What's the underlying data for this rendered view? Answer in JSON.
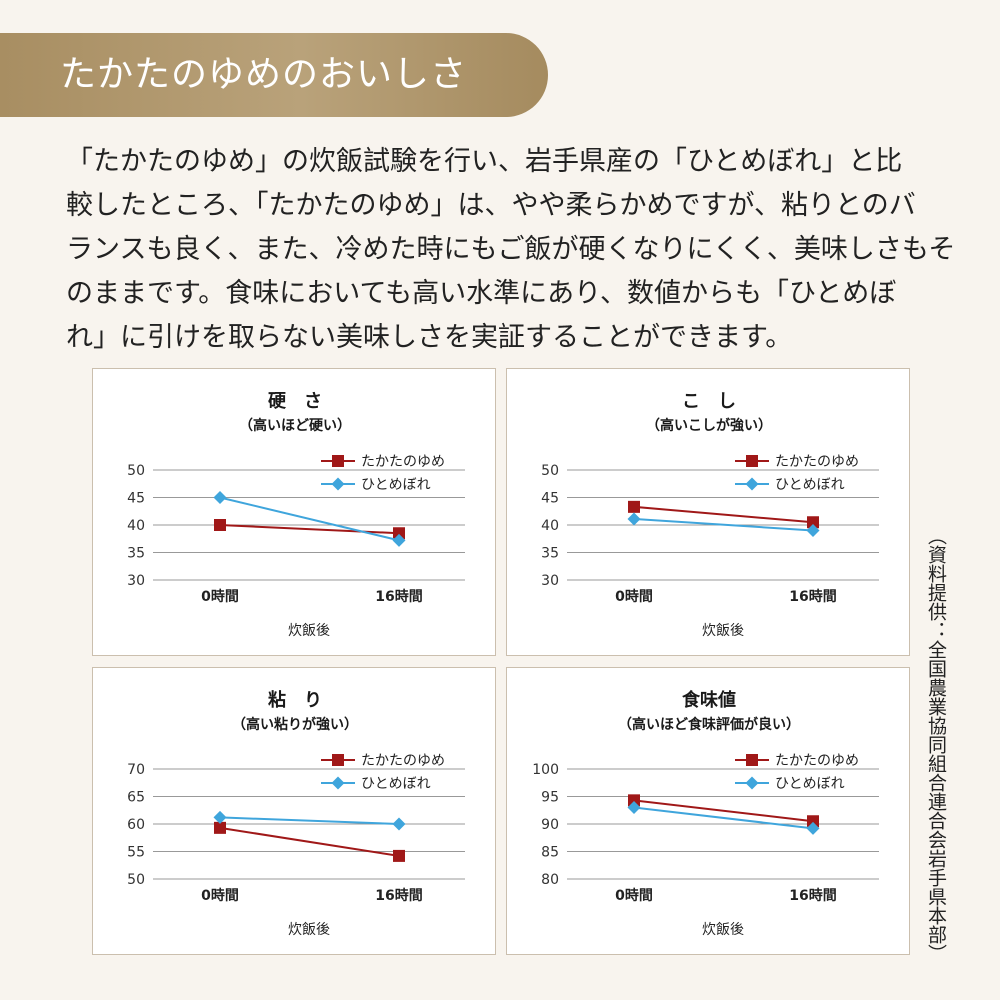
{
  "header": {
    "title": "たかたのゆめのおいしさ"
  },
  "intro": {
    "lines": [
      "「たかたのゆめ」の炊飯試験を行い、岩手県産の「ひとめぼれ」と比",
      "較したところ、「たかたのゆめ」は、やや柔らかめですが、粘りとのバ",
      "ランスも良く、また、冷めた時にもご飯が硬くなりにくく、美味しさもそ",
      "のままです。食味においても高い水準にあり、数値からも「ひとめぼ",
      "れ」に引けを取らない美味しさを実証することができます。"
    ]
  },
  "credit": "（資料提供：全国農業協同組合連合会岩手県本部）",
  "colors": {
    "takata": "#a01818",
    "hitome": "#3fa5dc",
    "grid": "#999999"
  },
  "chart_data": [
    {
      "type": "line",
      "title": "硬　さ",
      "subtitle": "（高いほど硬い）",
      "categories": [
        "0時間",
        "16時間"
      ],
      "xlabel": "炊飯後",
      "ylim": [
        30,
        50
      ],
      "yticks": [
        30,
        35,
        40,
        45,
        50
      ],
      "legend_position": "top-right",
      "series": [
        {
          "name": "たかたのゆめ",
          "marker": "square",
          "values": [
            40,
            38.5
          ]
        },
        {
          "name": "ひとめぼれ",
          "marker": "diamond",
          "values": [
            45,
            37.2
          ]
        }
      ]
    },
    {
      "type": "line",
      "title": "こ　し",
      "subtitle": "（高いこしが強い）",
      "categories": [
        "0時間",
        "16時間"
      ],
      "xlabel": "炊飯後",
      "ylim": [
        30,
        50
      ],
      "yticks": [
        30,
        35,
        40,
        45,
        50
      ],
      "legend_position": "top-right",
      "series": [
        {
          "name": "たかたのゆめ",
          "marker": "square",
          "values": [
            43.3,
            40.5
          ]
        },
        {
          "name": "ひとめぼれ",
          "marker": "diamond",
          "values": [
            41.1,
            39
          ]
        }
      ]
    },
    {
      "type": "line",
      "title": "粘　り",
      "subtitle": "（高い粘りが強い）",
      "categories": [
        "0時間",
        "16時間"
      ],
      "xlabel": "炊飯後",
      "ylim": [
        50,
        70
      ],
      "yticks": [
        50,
        55,
        60,
        65,
        70
      ],
      "legend_position": "top-right",
      "series": [
        {
          "name": "たかたのゆめ",
          "marker": "square",
          "values": [
            59.3,
            54.2
          ]
        },
        {
          "name": "ひとめぼれ",
          "marker": "diamond",
          "values": [
            61.2,
            60
          ]
        }
      ]
    },
    {
      "type": "line",
      "title": "食味値",
      "subtitle": "（高いほど食味評価が良い）",
      "categories": [
        "0時間",
        "16時間"
      ],
      "xlabel": "炊飯後",
      "ylim": [
        80,
        100
      ],
      "yticks": [
        80,
        85,
        90,
        95,
        100
      ],
      "legend_position": "top-right",
      "series": [
        {
          "name": "たかたのゆめ",
          "marker": "square",
          "values": [
            94.3,
            90.5
          ]
        },
        {
          "name": "ひとめぼれ",
          "marker": "diamond",
          "values": [
            93,
            89.2
          ]
        }
      ]
    }
  ]
}
